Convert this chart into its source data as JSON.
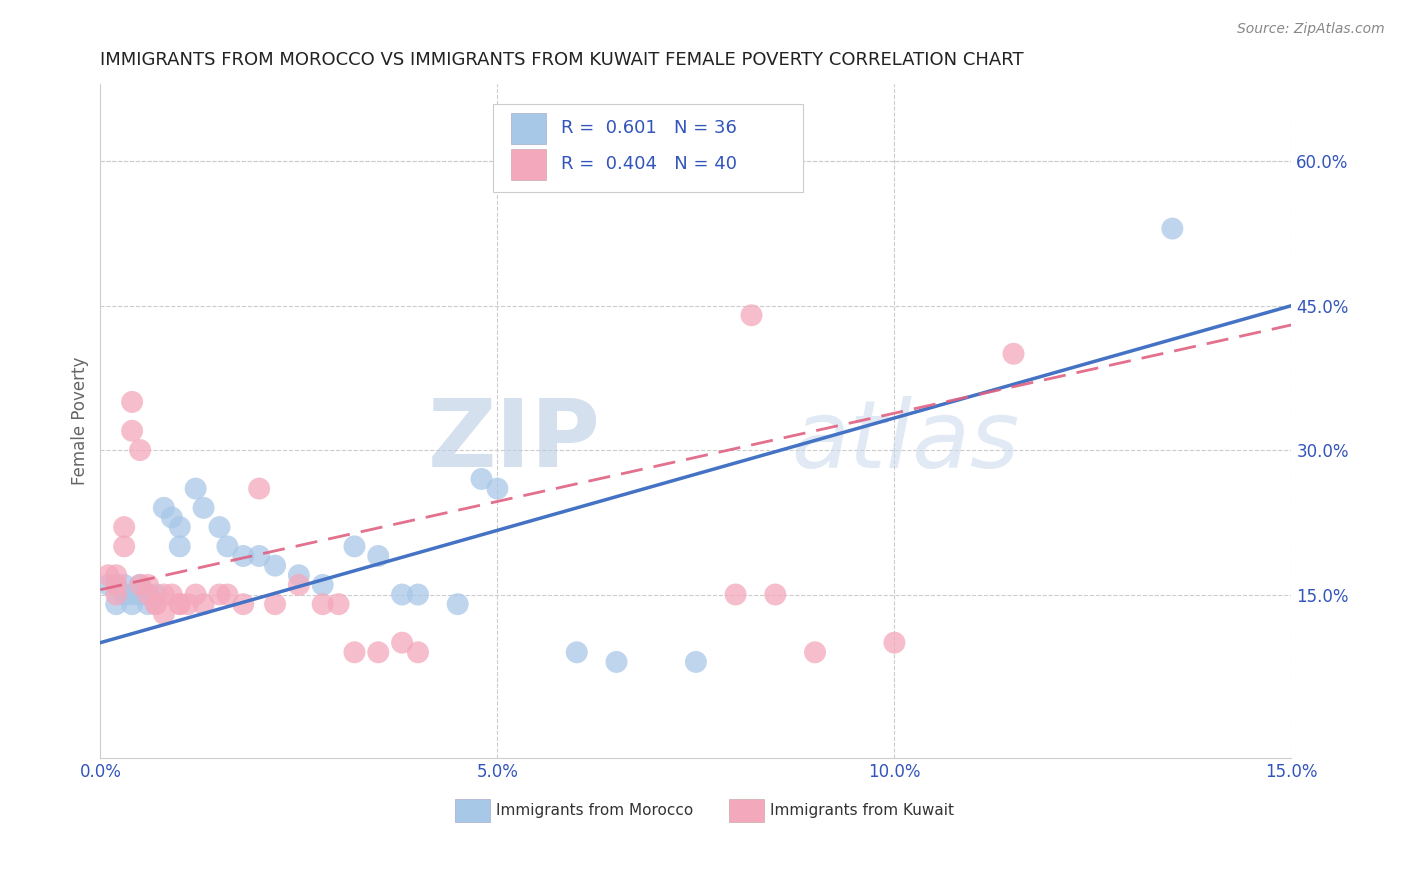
{
  "title": "IMMIGRANTS FROM MOROCCO VS IMMIGRANTS FROM KUWAIT FEMALE POVERTY CORRELATION CHART",
  "source": "Source: ZipAtlas.com",
  "ylabel": "Female Poverty",
  "xlim": [
    0.0,
    0.15
  ],
  "ylim": [
    -0.02,
    0.68
  ],
  "xticks": [
    0.0,
    0.05,
    0.1,
    0.15
  ],
  "xtick_labels": [
    "0.0%",
    "5.0%",
    "10.0%",
    "15.0%"
  ],
  "ytick_right_vals": [
    0.15,
    0.3,
    0.45,
    0.6
  ],
  "ytick_right_labels": [
    "15.0%",
    "30.0%",
    "45.0%",
    "60.0%"
  ],
  "morocco_color": "#a8c8e8",
  "kuwait_color": "#f4a8bc",
  "morocco_R": 0.601,
  "morocco_N": 36,
  "kuwait_R": 0.404,
  "kuwait_N": 40,
  "morocco_line_color": "#4472c4",
  "kuwait_line_color": "#e06080",
  "watermark_zip": "ZIP",
  "watermark_atlas": "atlas",
  "grid_color": "#cccccc",
  "morocco_points": [
    [
      0.001,
      0.16
    ],
    [
      0.002,
      0.16
    ],
    [
      0.002,
      0.14
    ],
    [
      0.003,
      0.15
    ],
    [
      0.003,
      0.16
    ],
    [
      0.004,
      0.15
    ],
    [
      0.004,
      0.14
    ],
    [
      0.005,
      0.16
    ],
    [
      0.005,
      0.15
    ],
    [
      0.006,
      0.15
    ],
    [
      0.006,
      0.14
    ],
    [
      0.007,
      0.15
    ],
    [
      0.008,
      0.24
    ],
    [
      0.009,
      0.23
    ],
    [
      0.01,
      0.22
    ],
    [
      0.01,
      0.2
    ],
    [
      0.012,
      0.26
    ],
    [
      0.013,
      0.24
    ],
    [
      0.015,
      0.22
    ],
    [
      0.016,
      0.2
    ],
    [
      0.018,
      0.19
    ],
    [
      0.02,
      0.19
    ],
    [
      0.022,
      0.18
    ],
    [
      0.025,
      0.17
    ],
    [
      0.028,
      0.16
    ],
    [
      0.032,
      0.2
    ],
    [
      0.035,
      0.19
    ],
    [
      0.038,
      0.15
    ],
    [
      0.04,
      0.15
    ],
    [
      0.045,
      0.14
    ],
    [
      0.048,
      0.27
    ],
    [
      0.05,
      0.26
    ],
    [
      0.06,
      0.09
    ],
    [
      0.065,
      0.08
    ],
    [
      0.075,
      0.08
    ],
    [
      0.135,
      0.53
    ]
  ],
  "kuwait_points": [
    [
      0.001,
      0.17
    ],
    [
      0.002,
      0.17
    ],
    [
      0.002,
      0.16
    ],
    [
      0.002,
      0.15
    ],
    [
      0.003,
      0.22
    ],
    [
      0.003,
      0.2
    ],
    [
      0.004,
      0.35
    ],
    [
      0.004,
      0.32
    ],
    [
      0.005,
      0.3
    ],
    [
      0.005,
      0.16
    ],
    [
      0.006,
      0.16
    ],
    [
      0.006,
      0.15
    ],
    [
      0.007,
      0.14
    ],
    [
      0.007,
      0.14
    ],
    [
      0.008,
      0.15
    ],
    [
      0.008,
      0.13
    ],
    [
      0.009,
      0.15
    ],
    [
      0.01,
      0.14
    ],
    [
      0.01,
      0.14
    ],
    [
      0.011,
      0.14
    ],
    [
      0.012,
      0.15
    ],
    [
      0.013,
      0.14
    ],
    [
      0.015,
      0.15
    ],
    [
      0.016,
      0.15
    ],
    [
      0.018,
      0.14
    ],
    [
      0.02,
      0.26
    ],
    [
      0.022,
      0.14
    ],
    [
      0.025,
      0.16
    ],
    [
      0.028,
      0.14
    ],
    [
      0.03,
      0.14
    ],
    [
      0.032,
      0.09
    ],
    [
      0.035,
      0.09
    ],
    [
      0.038,
      0.1
    ],
    [
      0.04,
      0.09
    ],
    [
      0.08,
      0.15
    ],
    [
      0.082,
      0.44
    ],
    [
      0.085,
      0.15
    ],
    [
      0.09,
      0.09
    ],
    [
      0.1,
      0.1
    ],
    [
      0.115,
      0.4
    ]
  ]
}
